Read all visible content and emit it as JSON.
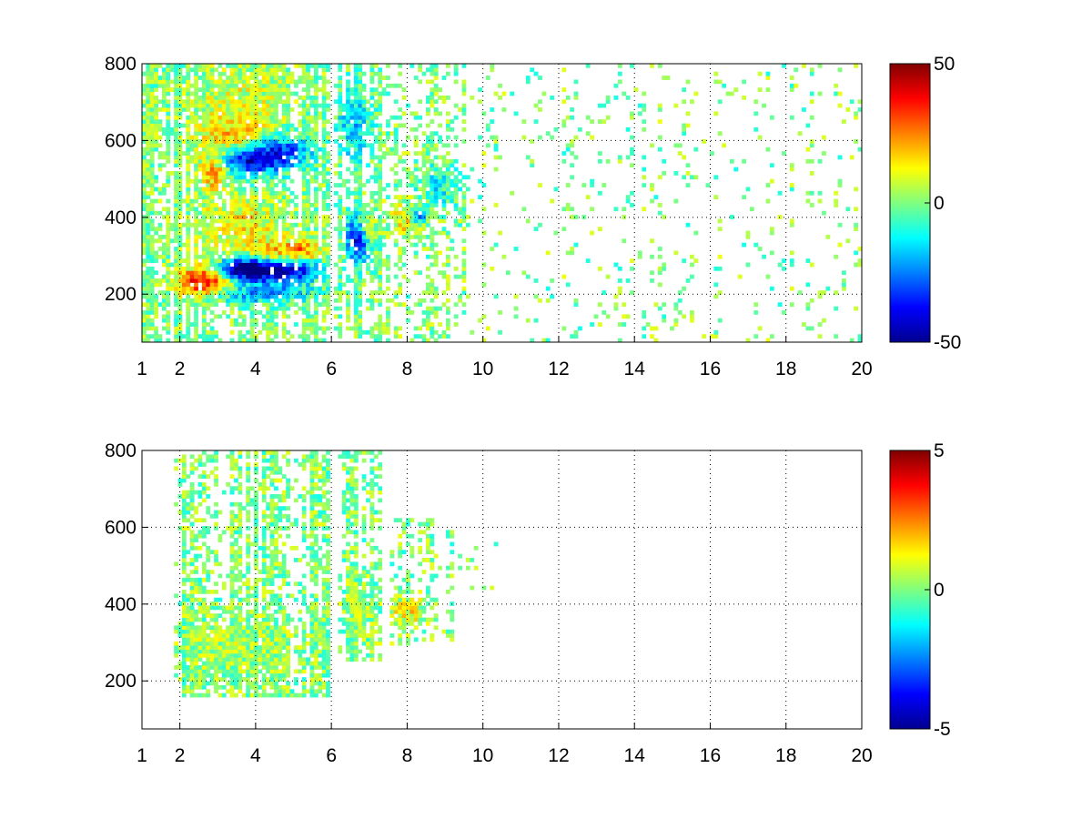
{
  "chart_data": [
    {
      "type": "heatmap",
      "title": "",
      "xlabel": "",
      "ylabel": "",
      "xlim": [
        1,
        20
      ],
      "ylim": [
        75,
        800
      ],
      "xticks": [
        1,
        2,
        4,
        6,
        8,
        10,
        12,
        14,
        16,
        18,
        20
      ],
      "xtick_labels": [
        "1",
        "2",
        "4",
        "6",
        "8",
        "10",
        "12",
        "14",
        "16",
        "18",
        "20"
      ],
      "yticks": [
        200,
        400,
        600,
        800
      ],
      "ytick_labels": [
        "200",
        "400",
        "600",
        "800"
      ],
      "grid": true,
      "colormap": "jet",
      "clim": [
        -50,
        50
      ],
      "colorbar_ticks": [
        -50,
        0,
        50
      ],
      "colorbar_labels": [
        "-50",
        "0",
        "50"
      ],
      "blobs": [
        {
          "x": 3.0,
          "y": 245,
          "sx": 0.45,
          "sy": 28,
          "v": 36
        },
        {
          "x": 3.4,
          "y": 262,
          "sx": 0.5,
          "sy": 18,
          "v": -48
        },
        {
          "x": 4.1,
          "y": 272,
          "sx": 0.55,
          "sy": 24,
          "v": -42
        },
        {
          "x": 4.3,
          "y": 300,
          "sx": 0.4,
          "sy": 20,
          "v": 30
        },
        {
          "x": 5.2,
          "y": 310,
          "sx": 0.35,
          "sy": 22,
          "v": 28
        },
        {
          "x": 5.0,
          "y": 265,
          "sx": 0.55,
          "sy": 22,
          "v": -36
        },
        {
          "x": 3.6,
          "y": 380,
          "sx": 0.8,
          "sy": 50,
          "v": 14
        },
        {
          "x": 2.4,
          "y": 230,
          "sx": 0.4,
          "sy": 28,
          "v": 26
        },
        {
          "x": 4.0,
          "y": 205,
          "sx": 1.0,
          "sy": 20,
          "v": -22
        },
        {
          "x": 2.9,
          "y": 520,
          "sx": 0.3,
          "sy": 30,
          "v": 26
        },
        {
          "x": 3.8,
          "y": 545,
          "sx": 0.6,
          "sy": 25,
          "v": -36
        },
        {
          "x": 4.6,
          "y": 575,
          "sx": 0.6,
          "sy": 30,
          "v": -32
        },
        {
          "x": 3.5,
          "y": 610,
          "sx": 0.7,
          "sy": 40,
          "v": 18
        },
        {
          "x": 3.6,
          "y": 720,
          "sx": 0.9,
          "sy": 60,
          "v": 8
        },
        {
          "x": 6.7,
          "y": 350,
          "sx": 0.22,
          "sy": 45,
          "v": -38
        },
        {
          "x": 6.9,
          "y": 380,
          "sx": 0.18,
          "sy": 25,
          "v": 22
        },
        {
          "x": 6.6,
          "y": 640,
          "sx": 0.3,
          "sy": 70,
          "v": -18
        },
        {
          "x": 8.0,
          "y": 390,
          "sx": 0.3,
          "sy": 35,
          "v": 14
        },
        {
          "x": 8.3,
          "y": 405,
          "sx": 0.15,
          "sy": 15,
          "v": -28
        },
        {
          "x": 8.8,
          "y": 480,
          "sx": 0.4,
          "sy": 40,
          "v": -12
        }
      ],
      "columns": [
        {
          "x0": 1.0,
          "x1": 6.0,
          "y0": 75,
          "y1": 800,
          "density": 0.55
        },
        {
          "x0": 6.1,
          "x1": 7.3,
          "y0": 75,
          "y1": 800,
          "density": 0.55
        },
        {
          "x0": 7.3,
          "x1": 9.5,
          "y0": 75,
          "y1": 800,
          "density": 0.3
        },
        {
          "x0": 9.5,
          "x1": 20.0,
          "y0": 75,
          "y1": 800,
          "density": 0.08
        }
      ]
    },
    {
      "type": "heatmap",
      "title": "",
      "xlabel": "",
      "ylabel": "",
      "xlim": [
        1,
        20
      ],
      "ylim": [
        75,
        800
      ],
      "xticks": [
        1,
        2,
        4,
        6,
        8,
        10,
        12,
        14,
        16,
        18,
        20
      ],
      "xtick_labels": [
        "1",
        "2",
        "4",
        "6",
        "8",
        "10",
        "12",
        "14",
        "16",
        "18",
        "20"
      ],
      "yticks": [
        200,
        400,
        600,
        800
      ],
      "ytick_labels": [
        "200",
        "400",
        "600",
        "800"
      ],
      "grid": true,
      "colormap": "jet",
      "clim": [
        -5,
        5
      ],
      "colorbar_ticks": [
        -5,
        0,
        5
      ],
      "colorbar_labels": [
        "-5",
        "0",
        "5"
      ],
      "blobs": [
        {
          "x": 3.5,
          "y": 280,
          "sx": 1.2,
          "sy": 60,
          "v": 0.4
        },
        {
          "x": 8.0,
          "y": 380,
          "sx": 0.3,
          "sy": 30,
          "v": 1.3
        },
        {
          "x": 6.8,
          "y": 380,
          "sx": 0.3,
          "sy": 60,
          "v": 0.3
        }
      ],
      "columns": [
        {
          "x0": 1.8,
          "x1": 6.0,
          "y0": 160,
          "y1": 800,
          "density": 0.5
        },
        {
          "x0": 6.2,
          "x1": 7.3,
          "y0": 250,
          "y1": 800,
          "density": 0.45
        },
        {
          "x0": 7.5,
          "x1": 9.2,
          "y0": 290,
          "y1": 620,
          "density": 0.3
        },
        {
          "x0": 9.2,
          "x1": 10.4,
          "y0": 430,
          "y1": 560,
          "density": 0.05
        }
      ]
    }
  ]
}
